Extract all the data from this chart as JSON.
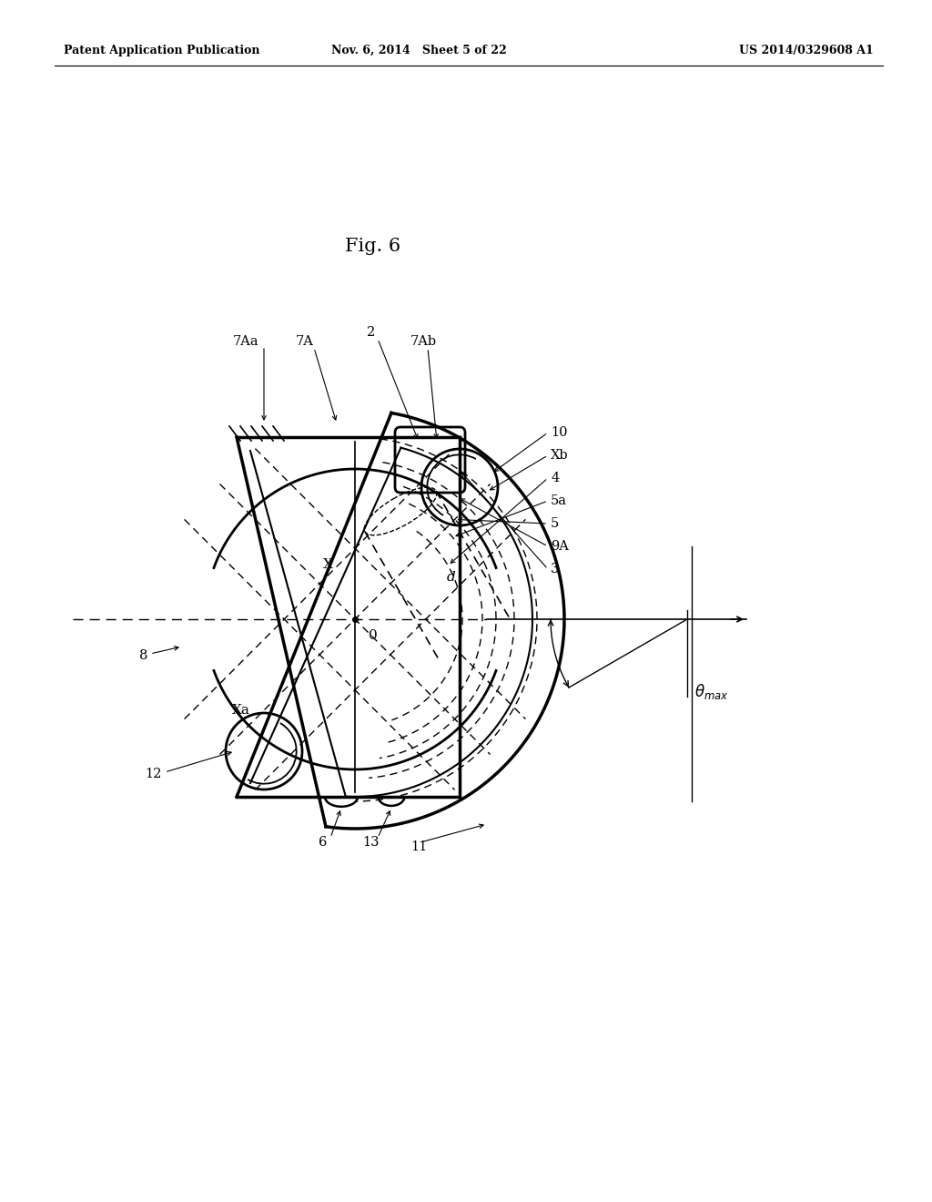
{
  "header_left": "Patent Application Publication",
  "header_center": "Nov. 6, 2014   Sheet 5 of 22",
  "header_right": "US 2014/0329608 A1",
  "fig_label": "Fig. 6",
  "bg_color": "#ffffff",
  "lc": "#000000"
}
